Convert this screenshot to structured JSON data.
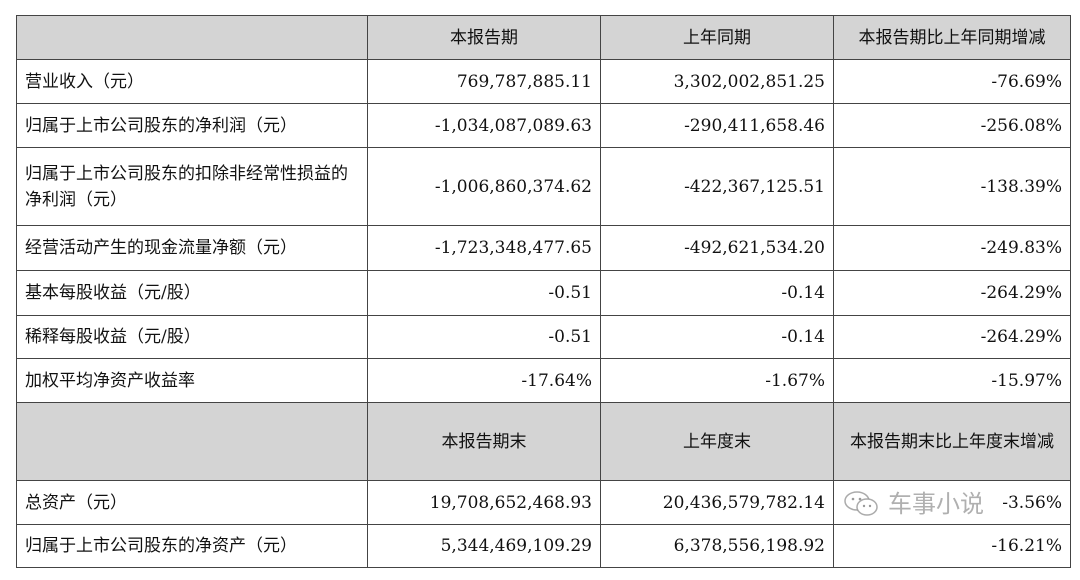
{
  "table": {
    "header1": [
      "",
      "本报告期",
      "上年同期",
      "本报告期比上年同期增减"
    ],
    "rows1": [
      [
        "营业收入（元）",
        "769,787,885.11",
        "3,302,002,851.25",
        "-76.69%"
      ],
      [
        "归属于上市公司股东的净利润（元）",
        "-1,034,087,089.63",
        "-290,411,658.46",
        "-256.08%"
      ],
      [
        "归属于上市公司股东的扣除非经常性损益的净利润（元）",
        "-1,006,860,374.62",
        "-422,367,125.51",
        "-138.39%"
      ],
      [
        "经营活动产生的现金流量净额（元）",
        "-1,723,348,477.65",
        "-492,621,534.20",
        "-249.83%"
      ],
      [
        "基本每股收益（元/股）",
        "-0.51",
        "-0.14",
        "-264.29%"
      ],
      [
        "稀释每股收益（元/股）",
        "-0.51",
        "-0.14",
        "-264.29%"
      ],
      [
        "加权平均净资产收益率",
        "-17.64%",
        "-1.67%",
        "-15.97%"
      ]
    ],
    "header2": [
      "",
      "本报告期末",
      "上年度末",
      "本报告期末比上年度末增减"
    ],
    "rows2": [
      [
        "总资产（元）",
        "19,708,652,468.93",
        "20,436,579,782.14",
        "-3.56%"
      ],
      [
        "归属于上市公司股东的净资产（元）",
        "5,344,469,109.29",
        "6,378,556,198.92",
        "-16.21%"
      ]
    ]
  },
  "watermark": {
    "icon": "wechat-icon",
    "text": "车事小说"
  }
}
